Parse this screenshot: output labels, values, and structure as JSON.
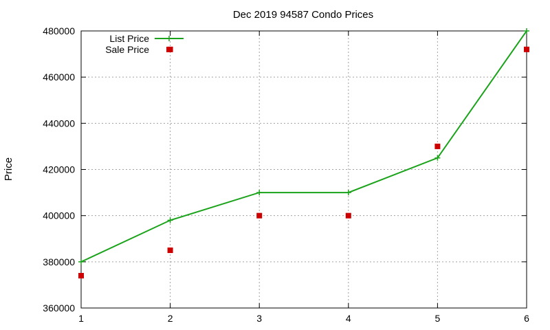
{
  "chart_data": {
    "type": "line",
    "title": "Dec 2019 94587 Condo Prices",
    "xlabel": "",
    "ylabel": "Price",
    "xlim": [
      1,
      6
    ],
    "ylim": [
      360000,
      480000
    ],
    "x_ticks": [
      1,
      2,
      3,
      4,
      5,
      6
    ],
    "y_ticks": [
      360000,
      380000,
      400000,
      420000,
      440000,
      460000,
      480000
    ],
    "grid": true,
    "legend_position": "top-left",
    "series": [
      {
        "name": "List Price",
        "style": "line-with-plus-markers",
        "color": "#1aa31a",
        "points": [
          [
            1,
            380000
          ],
          [
            2,
            398000
          ],
          [
            3,
            410000
          ],
          [
            4,
            410000
          ],
          [
            5,
            425000
          ],
          [
            6,
            480000
          ]
        ]
      },
      {
        "name": "Sale Price",
        "style": "square-markers",
        "color": "#cc0000",
        "points": [
          [
            1,
            374000
          ],
          [
            2,
            385000
          ],
          [
            2,
            472000
          ],
          [
            3,
            400000
          ],
          [
            4,
            400000
          ],
          [
            5,
            430000
          ],
          [
            6,
            472000
          ]
        ]
      }
    ]
  }
}
